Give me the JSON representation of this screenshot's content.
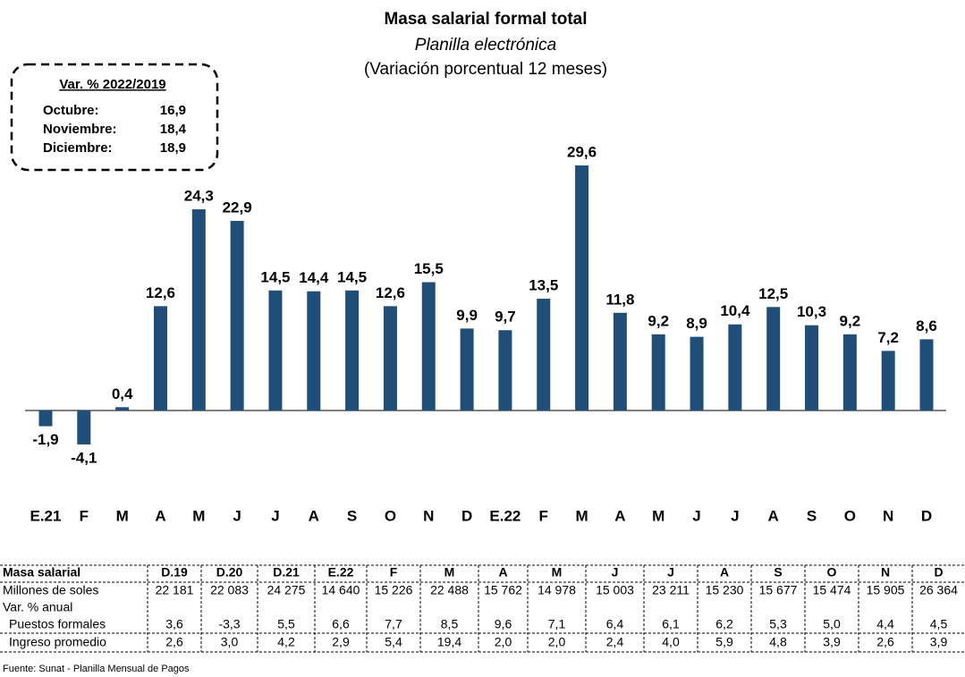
{
  "chart_data": {
    "type": "bar",
    "title": "Masa salarial formal total",
    "subtitle": "Planilla electrónica",
    "subtitle2": "(Variación porcentual 12 meses)",
    "categories": [
      "E.21",
      "F",
      "M",
      "A",
      "M",
      "J",
      "J",
      "A",
      "S",
      "O",
      "N",
      "D",
      "E.22",
      "F",
      "M",
      "A",
      "M",
      "J",
      "J",
      "A",
      "S",
      "O",
      "N",
      "D"
    ],
    "values": [
      -1.9,
      -4.1,
      0.4,
      12.6,
      24.3,
      22.9,
      14.5,
      14.4,
      14.5,
      12.6,
      15.5,
      9.9,
      9.7,
      13.5,
      29.6,
      11.8,
      9.2,
      8.9,
      10.4,
      12.5,
      10.3,
      9.2,
      7.2,
      8.6
    ],
    "value_labels": [
      "-1,9",
      "-4,1",
      "0,4",
      "12,6",
      "24,3",
      "22,9",
      "14,5",
      "14,4",
      "14,5",
      "12,6",
      "15,5",
      "9,9",
      "9,7",
      "13,5",
      "29,6",
      "11,8",
      "9,2",
      "8,9",
      "10,4",
      "12,5",
      "10,3",
      "9,2",
      "7,2",
      "8,6"
    ],
    "color": "#1f4e79"
  },
  "inset": {
    "title": "Var. % 2022/2019",
    "rows": [
      [
        "Octubre:",
        "16,9"
      ],
      [
        "Noviembre:",
        "18,4"
      ],
      [
        "Diciembre:",
        "18,9"
      ]
    ]
  },
  "table": {
    "rows": [
      [
        "Masa salarial",
        "D.19",
        "D.20",
        "D.21",
        "E.22",
        "F",
        "M",
        "A",
        "M",
        "J",
        "J",
        "A",
        "S",
        "O",
        "N",
        "D"
      ],
      [
        "Millones de soles",
        "22 181",
        "22 083",
        "24 275",
        "14 640",
        "15 226",
        "22 488",
        "15 762",
        "14 978",
        "15 003",
        "23 211",
        "15 230",
        "15 677",
        "15 474",
        "15 905",
        "26 364"
      ],
      [
        "Var. % anual"
      ],
      [
        "Puestos formales",
        "3,6",
        "-3,3",
        "5,5",
        "6,6",
        "7,7",
        "8,5",
        "9,6",
        "7,1",
        "6,4",
        "6,1",
        "6,2",
        "5,3",
        "5,0",
        "4,4",
        "4,5"
      ],
      [
        "Ingreso promedio",
        "2,6",
        "3,0",
        "4,2",
        "2,9",
        "5,4",
        "19,4",
        "2,0",
        "2,0",
        "2,4",
        "4,0",
        "5,9",
        "4,8",
        "3,9",
        "2,6",
        "3,9"
      ]
    ]
  },
  "source": "Fuente: Sunat - Planilla Mensual de Pagos"
}
